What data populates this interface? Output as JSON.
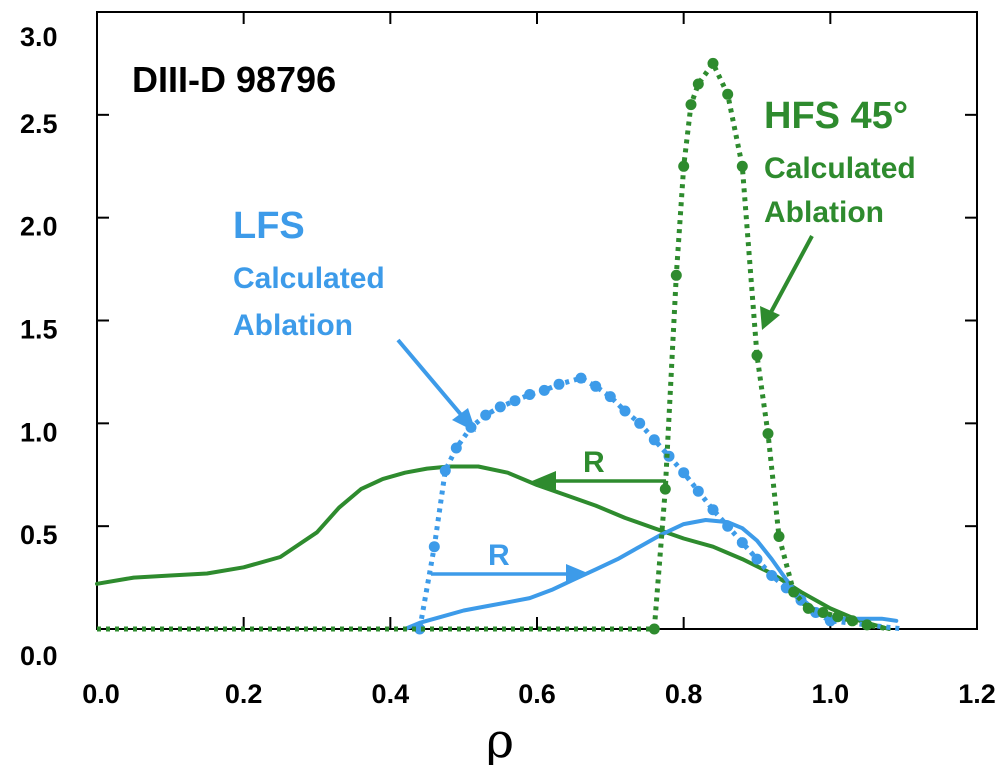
{
  "chart_data": {
    "type": "line",
    "title": "DIII-D 98796",
    "xlabel": "ρ",
    "ylabel": "",
    "xlim": [
      0.0,
      1.2
    ],
    "ylim": [
      0.0,
      3.0
    ],
    "xticks": [
      "0.0",
      "0.2",
      "0.4",
      "0.6",
      "0.8",
      "1.0",
      "1.2"
    ],
    "yticks": [
      "0.0",
      "0.5",
      "1.0",
      "1.5",
      "2.0",
      "2.5",
      "3.0"
    ],
    "grid": false,
    "colors": {
      "lfs": "#3d9be9",
      "hfs": "#2e8b2e"
    },
    "series": [
      {
        "id": "lfs-calc",
        "style": "dotted-markers",
        "color": "#3d9be9",
        "x": [
          0.0,
          0.44,
          0.46,
          0.475,
          0.49,
          0.51,
          0.53,
          0.55,
          0.57,
          0.59,
          0.61,
          0.63,
          0.66,
          0.68,
          0.7,
          0.72,
          0.74,
          0.76,
          0.78,
          0.8,
          0.82,
          0.84,
          0.86,
          0.88,
          0.9,
          0.92,
          0.94,
          0.96,
          0.98,
          1.0,
          1.1
        ],
        "y": [
          0.0,
          0.0,
          0.4,
          0.77,
          0.88,
          0.98,
          1.04,
          1.08,
          1.11,
          1.14,
          1.16,
          1.19,
          1.22,
          1.18,
          1.13,
          1.06,
          1.0,
          0.92,
          0.84,
          0.76,
          0.67,
          0.58,
          0.5,
          0.42,
          0.34,
          0.26,
          0.2,
          0.14,
          0.08,
          0.04,
          0.0
        ]
      },
      {
        "id": "lfs-measured",
        "style": "solid",
        "color": "#3d9be9",
        "x": [
          0.42,
          0.44,
          0.47,
          0.5,
          0.53,
          0.56,
          0.59,
          0.62,
          0.65,
          0.68,
          0.71,
          0.74,
          0.77,
          0.8,
          0.83,
          0.86,
          0.88,
          0.9,
          0.92,
          0.94,
          0.96,
          0.98,
          1.0,
          1.02,
          1.04,
          1.07,
          1.09
        ],
        "y": [
          0.0,
          0.03,
          0.06,
          0.09,
          0.11,
          0.13,
          0.15,
          0.19,
          0.24,
          0.29,
          0.34,
          0.4,
          0.46,
          0.51,
          0.53,
          0.52,
          0.49,
          0.43,
          0.34,
          0.24,
          0.15,
          0.09,
          0.06,
          0.05,
          0.05,
          0.05,
          0.04
        ]
      },
      {
        "id": "hfs-calc",
        "style": "dotted-markers",
        "color": "#2e8b2e",
        "x": [
          0.0,
          0.76,
          0.775,
          0.79,
          0.8,
          0.81,
          0.82,
          0.84,
          0.86,
          0.88,
          0.9,
          0.915,
          0.93,
          0.95,
          0.97,
          0.99,
          1.01,
          1.03,
          1.05,
          1.08
        ],
        "y": [
          0.0,
          0.0,
          0.68,
          1.72,
          2.25,
          2.55,
          2.65,
          2.75,
          2.6,
          2.25,
          1.33,
          0.95,
          0.45,
          0.18,
          0.1,
          0.08,
          0.06,
          0.04,
          0.02,
          0.0
        ]
      },
      {
        "id": "hfs-measured",
        "style": "solid",
        "color": "#2e8b2e",
        "x": [
          0.0,
          0.05,
          0.1,
          0.15,
          0.2,
          0.25,
          0.3,
          0.33,
          0.36,
          0.39,
          0.42,
          0.45,
          0.48,
          0.52,
          0.56,
          0.6,
          0.64,
          0.68,
          0.72,
          0.76,
          0.8,
          0.84,
          0.88,
          0.92,
          0.96,
          1.0,
          1.04,
          1.08
        ],
        "y": [
          0.22,
          0.25,
          0.26,
          0.27,
          0.3,
          0.35,
          0.47,
          0.59,
          0.68,
          0.73,
          0.76,
          0.78,
          0.79,
          0.79,
          0.76,
          0.7,
          0.65,
          0.6,
          0.54,
          0.49,
          0.44,
          0.4,
          0.34,
          0.27,
          0.18,
          0.1,
          0.04,
          0.0
        ]
      }
    ],
    "annotations": {
      "lfs_title": "LFS",
      "lfs_line1": "Calculated",
      "lfs_line2": "Ablation",
      "hfs_title": "HFS 45°",
      "hfs_line1": "Calculated",
      "hfs_line2": "Ablation",
      "r_hfs": "R",
      "r_lfs": "R"
    }
  }
}
